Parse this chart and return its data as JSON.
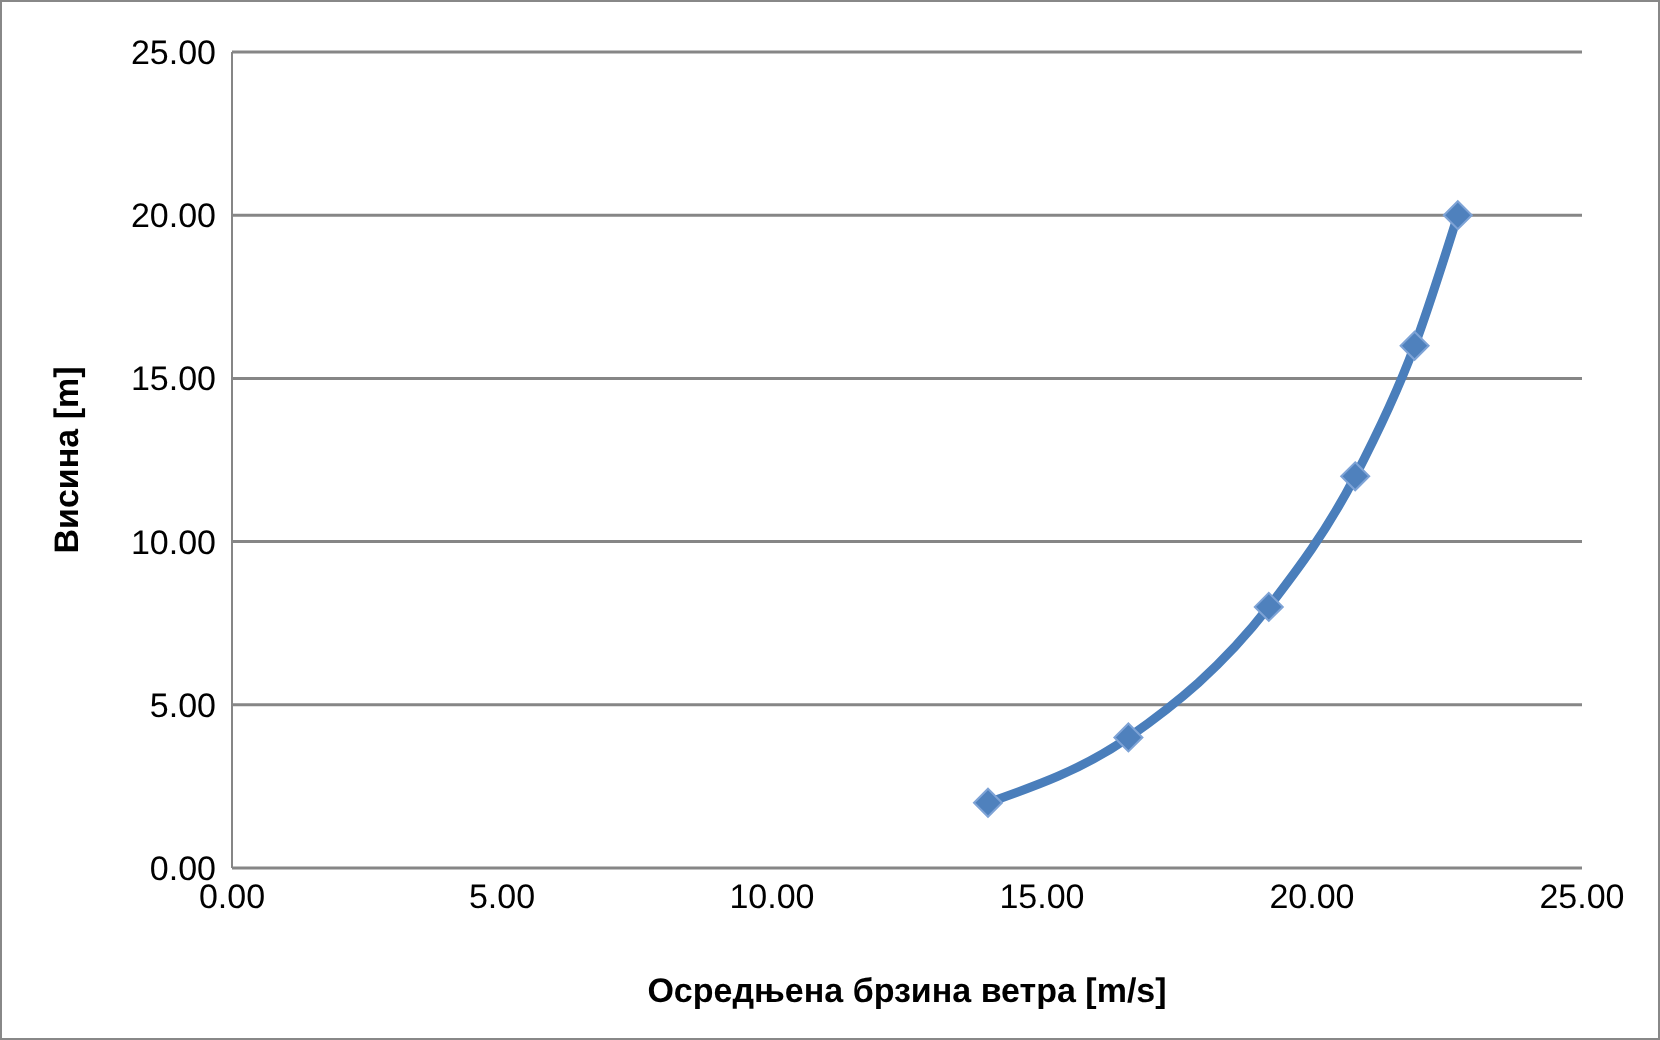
{
  "chart_data": {
    "type": "line",
    "xlabel": "Осредњена брзина ветра [m/s]",
    "ylabel": "Висина [m]",
    "series": [
      {
        "color": "#4a7ebb",
        "x": [
          14.0,
          16.6,
          19.2,
          20.8,
          21.9,
          22.7
        ],
        "values": [
          2,
          4,
          8,
          12,
          16,
          20
        ]
      }
    ],
    "xlim": [
      0,
      25
    ],
    "xticks": [
      {
        "value": 0,
        "label": "0.00"
      },
      {
        "value": 5,
        "label": "5.00"
      },
      {
        "value": 10,
        "label": "10.00"
      },
      {
        "value": 15,
        "label": "15.00"
      },
      {
        "value": 20,
        "label": "20.00"
      },
      {
        "value": 25,
        "label": "25.00"
      }
    ],
    "ylim": [
      0,
      25
    ],
    "yticks": [
      {
        "value": 0,
        "label": "0.00"
      },
      {
        "value": 5,
        "label": "5.00"
      },
      {
        "value": 10,
        "label": "10.00"
      },
      {
        "value": 15,
        "label": "15.00"
      },
      {
        "value": 20,
        "label": "20.00"
      },
      {
        "value": 25,
        "label": "25.00"
      }
    ],
    "grid": "y",
    "legend": false,
    "marker": "diamond",
    "line_style": "solid"
  }
}
